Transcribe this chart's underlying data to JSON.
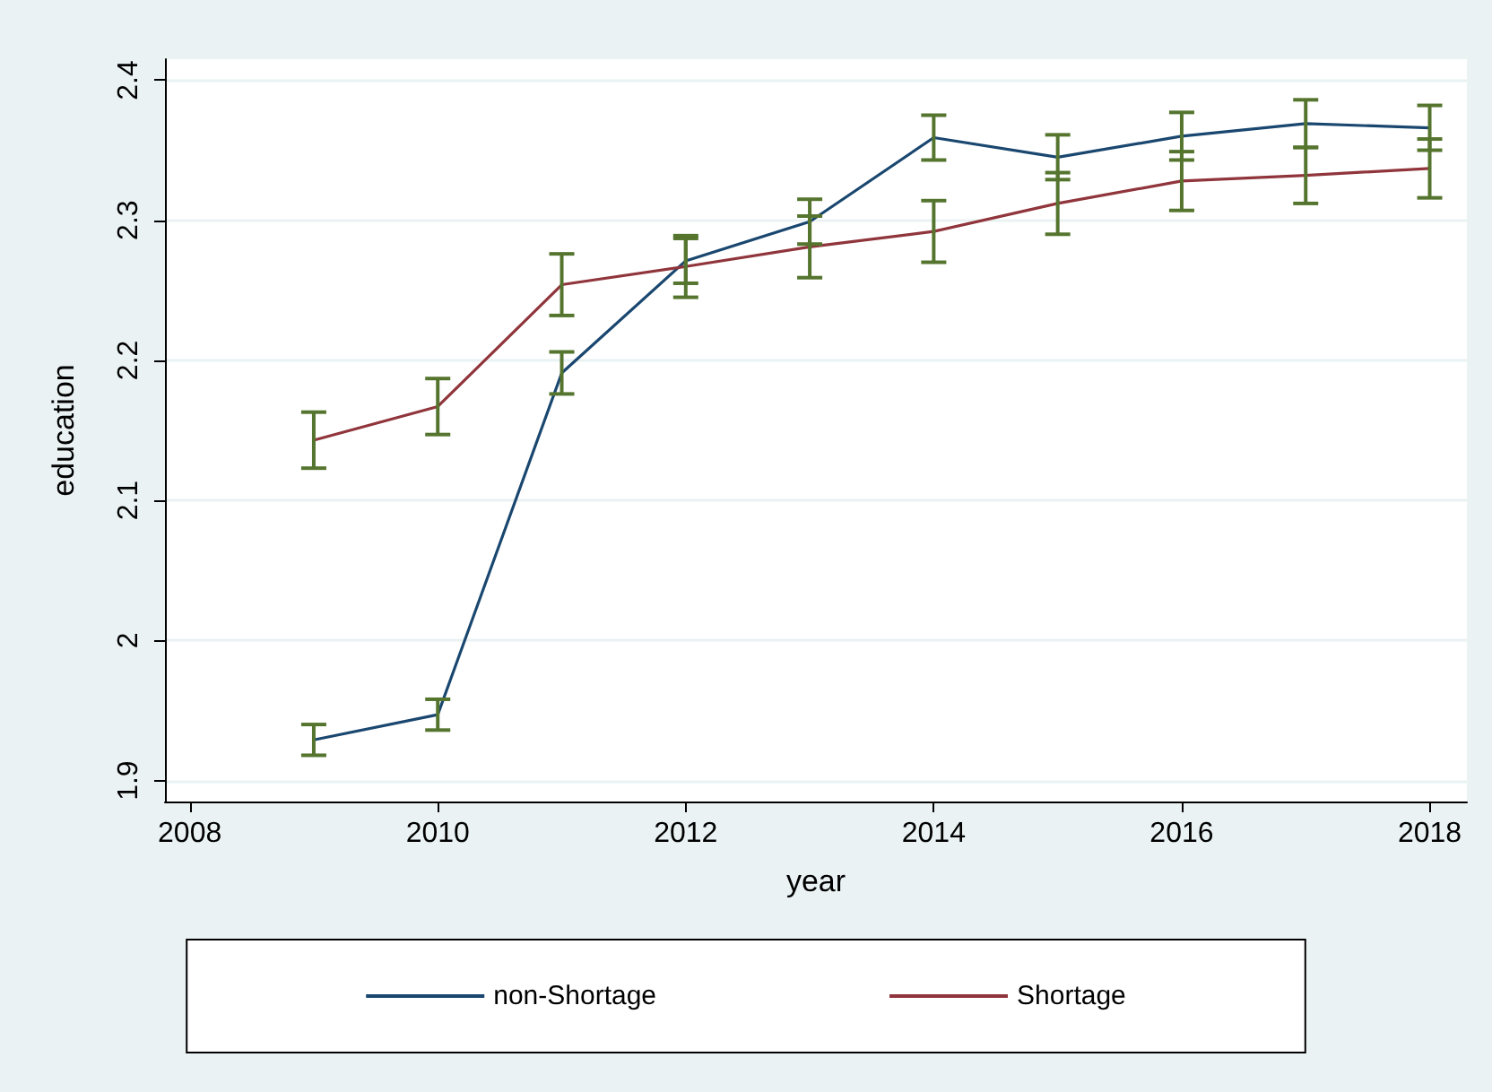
{
  "chart_data": {
    "type": "line",
    "xlabel": "year",
    "ylabel": "education",
    "x": [
      2009,
      2010,
      2011,
      2012,
      2013,
      2014,
      2015,
      2016,
      2017,
      2018
    ],
    "series": [
      {
        "name": "non-Shortage",
        "color": "#1a476f",
        "values": [
          1.929,
          1.947,
          2.191,
          2.271,
          2.299,
          2.359,
          2.345,
          2.36,
          2.369,
          2.366
        ],
        "errors": [
          0.011,
          0.011,
          0.015,
          0.016,
          0.016,
          0.016,
          0.016,
          0.017,
          0.017,
          0.016
        ]
      },
      {
        "name": "Shortage",
        "color": "#90353b",
        "values": [
          2.143,
          2.167,
          2.254,
          2.267,
          2.281,
          2.292,
          2.312,
          2.328,
          2.332,
          2.337
        ],
        "errors": [
          0.02,
          0.02,
          0.022,
          0.022,
          0.022,
          0.022,
          0.022,
          0.021,
          0.02,
          0.021
        ]
      }
    ],
    "xlim": [
      2007.8,
      2018.3
    ],
    "xticks": [
      2008,
      2010,
      2012,
      2014,
      2016,
      2018
    ],
    "ylim": [
      1.885,
      2.415
    ],
    "yticks": [
      1.9,
      2,
      2.1,
      2.2,
      2.3,
      2.4
    ],
    "grid": "y",
    "legend": "bottom",
    "marker": "none",
    "line_style": "solid"
  }
}
